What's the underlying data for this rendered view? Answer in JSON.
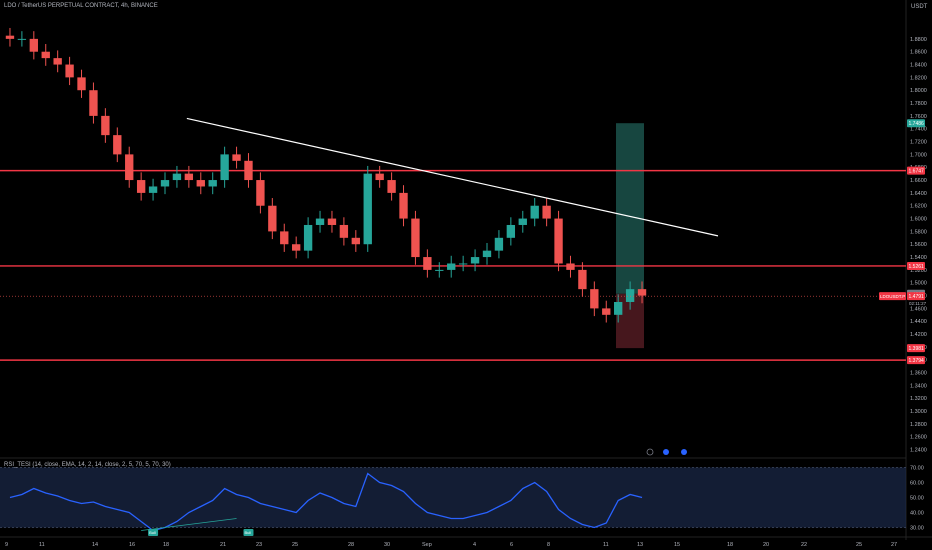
{
  "header": {
    "symbol_text": "LDO / TetherUS PERPETUAL CONTRACT, 4h, BINANCE",
    "currency": "USDT"
  },
  "indicator": {
    "label": "RSI_TESI (14, close, EMA, 14, 2, 14, close, 2, 5, 70, 5, 70, 30)"
  },
  "colors": {
    "background": "#000000",
    "up_candle": "#26a69a",
    "down_candle": "#ef5350",
    "support_line": "#f23645",
    "trendline": "#ffffff",
    "rsi_line": "#2962ff",
    "rsi_band": "#1b2a4a",
    "long_target_zone": "#1f5e55",
    "long_stop_zone": "#5e1f27",
    "axis_text": "#b2b5be"
  },
  "chart_data": {
    "type": "candlestick",
    "timeframe": "4h",
    "price_axis": {
      "range": [
        1.23,
        1.925
      ],
      "ticks": [
        "1.8800",
        "1.8600",
        "1.8400",
        "1.8200",
        "1.8000",
        "1.7800",
        "1.7600",
        "1.7400",
        "1.7200",
        "1.7000",
        "1.6800",
        "1.6600",
        "1.6400",
        "1.6200",
        "1.6000",
        "1.5800",
        "1.5600",
        "1.5400",
        "1.5200",
        "1.5000",
        "1.4800",
        "1.4600",
        "1.4400",
        "1.4200",
        "1.4000",
        "1.3800",
        "1.3600",
        "1.3400",
        "1.3200",
        "1.3000",
        "1.2800",
        "1.2600",
        "1.2400"
      ]
    },
    "time_axis": {
      "ticks": [
        "9",
        "11",
        "14",
        "16",
        "18",
        "21",
        "23",
        "25",
        "28",
        "30",
        "Sep",
        "4",
        "6",
        "8",
        "11",
        "13",
        "15",
        "18",
        "20",
        "22",
        "25",
        "27"
      ]
    },
    "series": [
      {
        "name": "price",
        "close": [
          1.88,
          1.88,
          1.86,
          1.85,
          1.84,
          1.82,
          1.8,
          1.76,
          1.73,
          1.7,
          1.66,
          1.64,
          1.65,
          1.66,
          1.67,
          1.66,
          1.65,
          1.66,
          1.7,
          1.69,
          1.66,
          1.62,
          1.58,
          1.56,
          1.55,
          1.59,
          1.6,
          1.59,
          1.57,
          1.56,
          1.67,
          1.66,
          1.64,
          1.6,
          1.54,
          1.52,
          1.52,
          1.53,
          1.53,
          1.54,
          1.55,
          1.57,
          1.59,
          1.6,
          1.62,
          1.6,
          1.53,
          1.52,
          1.49,
          1.46,
          1.45,
          1.47,
          1.49,
          1.48
        ]
      }
    ],
    "horizontal_levels": [
      {
        "label": "1.6747",
        "price": 1.6747
      },
      {
        "label": "1.5261",
        "price": 1.5261
      },
      {
        "label": "1.3794",
        "price": 1.3794
      }
    ],
    "price_labels": [
      {
        "label": "1.7486",
        "price": 1.7486,
        "kind": "target"
      },
      {
        "label": "1.4828",
        "price": 1.4828,
        "kind": "entry"
      },
      {
        "label": "1.4791",
        "price": 1.4791,
        "kind": "last"
      },
      {
        "label": "1.3981",
        "price": 1.3981,
        "kind": "stop"
      }
    ],
    "last_price_tag": "LDOUSDT.P",
    "last_price_sub": "02:11:27",
    "trendline": {
      "start_price": 1.756,
      "end_price": 1.573
    },
    "position_tool": {
      "entry": 1.4828,
      "target": 1.7486,
      "stop": 1.3981
    },
    "rsi": {
      "range": [
        25,
        75
      ],
      "ticks": [
        "70.00",
        "60.00",
        "50.00",
        "40.00",
        "30.00"
      ],
      "band": [
        30,
        70
      ],
      "values": [
        50,
        52,
        56,
        53,
        51,
        48,
        46,
        47,
        44,
        42,
        40,
        34,
        28,
        30,
        34,
        40,
        44,
        48,
        56,
        52,
        50,
        46,
        44,
        42,
        40,
        48,
        53,
        50,
        46,
        44,
        66,
        60,
        58,
        54,
        46,
        40,
        38,
        36,
        36,
        38,
        40,
        44,
        48,
        56,
        60,
        54,
        42,
        36,
        32,
        30,
        33,
        48,
        52,
        50
      ],
      "labels": [
        "Bull",
        "Bull"
      ]
    },
    "annotations": [
      "event-icon-1",
      "flag-icon-1",
      "flag-icon-2"
    ]
  }
}
